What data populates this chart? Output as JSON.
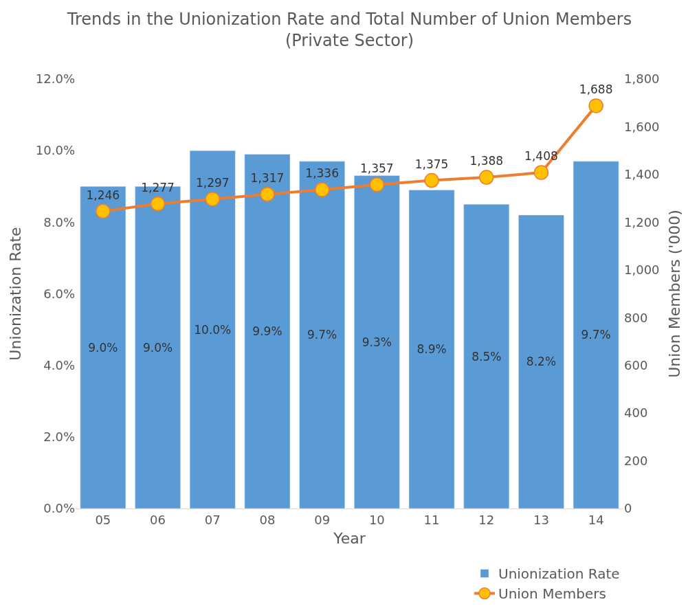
{
  "chart_data": {
    "type": "bar",
    "title": "Trends in the Unionization Rate and Total Number of Union Members (Private Sector)",
    "xlabel": "Year",
    "ylabel": "Unionization Rate",
    "y2label": "Union Members ('000)",
    "categories": [
      "05",
      "06",
      "07",
      "08",
      "09",
      "10",
      "11",
      "12",
      "13",
      "14"
    ],
    "series": [
      {
        "name": "Unionization Rate",
        "color": "#5b9bd5",
        "values": [
          9.0,
          9.0,
          10.0,
          9.9,
          9.7,
          9.3,
          8.9,
          8.5,
          8.2,
          9.7
        ],
        "value_labels": [
          "9.0%",
          "9.0%",
          "10.0%",
          "9.9%",
          "9.7%",
          "9.3%",
          "8.9%",
          "8.5%",
          "8.2%",
          "9.7%"
        ]
      },
      {
        "name": "Union Members",
        "type": "line",
        "axis": "y2",
        "color": "#ed7d31",
        "marker": "circle",
        "values": [
          1246,
          1277,
          1297,
          1317,
          1336,
          1357,
          1375,
          1388,
          1408,
          1688
        ],
        "value_labels": [
          "1,246",
          "1,277",
          "1,297",
          "1,317",
          "1,336",
          "1,357",
          "1,375",
          "1,388",
          "1,408",
          "1,688"
        ]
      }
    ],
    "ylim": [
      0,
      12
    ],
    "yticks": [
      {
        "value": 0,
        "label": "0.0%"
      },
      {
        "value": 2,
        "label": "2.0%"
      },
      {
        "value": 4,
        "label": "4.0%"
      },
      {
        "value": 6,
        "label": "6.0%"
      },
      {
        "value": 8,
        "label": "8.0%"
      },
      {
        "value": 10,
        "label": "10.0%"
      },
      {
        "value": 12,
        "label": "12.0%"
      }
    ],
    "y2lim": [
      0,
      1800
    ],
    "y2ticks": [
      0,
      200,
      400,
      600,
      800,
      {
        "value": 1000,
        "label": "1,000"
      },
      {
        "value": 1200,
        "label": "1,200"
      },
      {
        "value": 1400,
        "label": "1,400"
      },
      {
        "value": 1600,
        "label": "1,600"
      },
      {
        "value": 1800,
        "label": "1,800"
      }
    ],
    "legend": "bottom right"
  }
}
